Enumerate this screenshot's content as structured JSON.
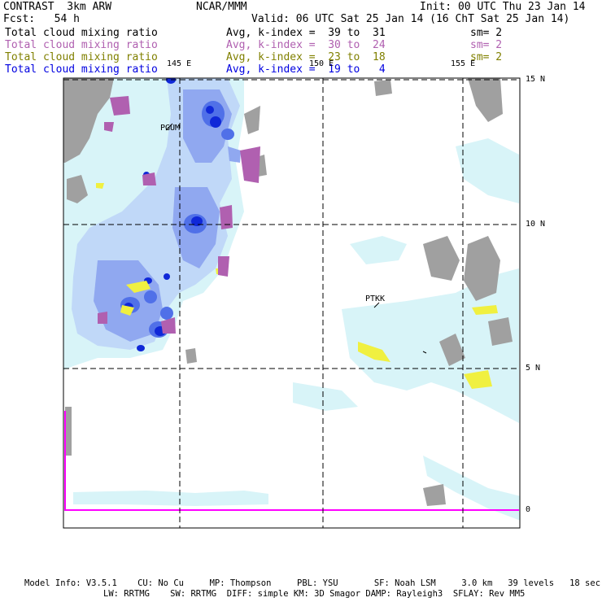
{
  "header": {
    "title": "CONTRAST  3km ARW",
    "org": "NCAR/MMM",
    "init": "Init: 00 UTC Thu 23 Jan 14",
    "fcst": "Fcst:   54 h",
    "valid": "Valid: 06 UTC Sat 25 Jan 14 (16 ChT Sat 25 Jan 14)"
  },
  "legend": [
    {
      "field": "Total cloud mixing ratio",
      "stat": "Avg, k-index =  39 to  31",
      "sm": "sm= 2",
      "color": "#000000"
    },
    {
      "field": "Total cloud mixing ratio",
      "stat": "Avg, k-index =  30 to  24",
      "sm": "sm= 2",
      "color": "#b060b0"
    },
    {
      "field": "Total cloud mixing ratio",
      "stat": "Avg, k-index =  23 to  18",
      "sm": "sm= 2",
      "color": "#808000"
    },
    {
      "field": "Total cloud mixing ratio",
      "stat": "Avg, k-index =  19 to   4",
      "sm": "",
      "color": "#0000e0"
    }
  ],
  "map": {
    "lon_labels": [
      "145 E",
      "150 E",
      "155 E"
    ],
    "lat_labels": [
      "15 N",
      "10 N",
      "5 N",
      "0"
    ],
    "stations": [
      "PGUM",
      "PTKK"
    ],
    "colors": {
      "land": "#a0a0a0",
      "light_cloud": "#d8f4f8",
      "pale_blue": "#c0d8f8",
      "mid_blue": "#90a8f0",
      "blue": "#5070e8",
      "dark_blue": "#1028d8",
      "purple": "#b060b0",
      "yellow": "#f0f040",
      "boundary": "#ff00ff"
    }
  },
  "footer": {
    "line1": "Model Info: V3.5.1    CU: No Cu     MP: Thompson     PBL: YSU       SF: Noah LSM     3.0 km   39 levels   18 sec",
    "line2": "LW: RRTMG    SW: RRTMG  DIFF: simple KM: 3D Smagor DAMP: Rayleigh3  SFLAY: Rev MM5"
  }
}
